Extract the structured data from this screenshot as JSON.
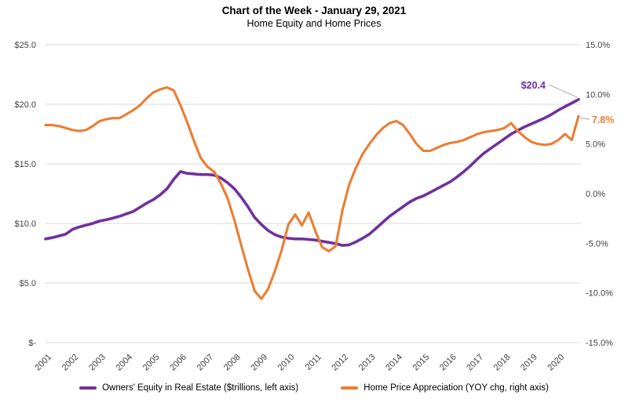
{
  "title": "Chart of the Week - January 29, 2021",
  "subtitle": "Home Equity and Home Prices",
  "chart_data": {
    "type": "line",
    "frequency": "quarterly",
    "x_years": [
      "2001",
      "2002",
      "2003",
      "2004",
      "2005",
      "2006",
      "2007",
      "2008",
      "2009",
      "2010",
      "2011",
      "2012",
      "2013",
      "2014",
      "2015",
      "2016",
      "2017",
      "2018",
      "2019",
      "2020"
    ],
    "series": [
      {
        "name": "Owners' Equity in Real Estate ($trillions, left axis)",
        "axis": "left",
        "color": "#7030A0",
        "end_label": "$20.4",
        "values": [
          8.7,
          8.8,
          8.95,
          9.1,
          9.5,
          9.7,
          9.85,
          10.0,
          10.2,
          10.3,
          10.45,
          10.6,
          10.8,
          11.0,
          11.35,
          11.7,
          12.0,
          12.4,
          12.9,
          13.7,
          14.35,
          14.2,
          14.15,
          14.1,
          14.1,
          14.05,
          13.8,
          13.4,
          12.9,
          12.2,
          11.4,
          10.5,
          9.9,
          9.4,
          9.05,
          8.85,
          8.75,
          8.7,
          8.7,
          8.65,
          8.6,
          8.5,
          8.4,
          8.3,
          8.15,
          8.2,
          8.45,
          8.75,
          9.1,
          9.6,
          10.1,
          10.6,
          11.0,
          11.4,
          11.8,
          12.1,
          12.3,
          12.6,
          12.9,
          13.2,
          13.5,
          13.9,
          14.35,
          14.85,
          15.4,
          15.9,
          16.3,
          16.7,
          17.1,
          17.5,
          17.8,
          18.1,
          18.35,
          18.6,
          18.85,
          19.15,
          19.5,
          19.8,
          20.1,
          20.4
        ]
      },
      {
        "name": "Home Price Appreciation (YOY chg, right axis)",
        "axis": "right",
        "color": "#ED7D31",
        "end_label": "7.8%",
        "values": [
          6.9,
          6.9,
          6.8,
          6.6,
          6.4,
          6.3,
          6.4,
          6.8,
          7.3,
          7.5,
          7.6,
          7.6,
          8.0,
          8.4,
          8.9,
          9.6,
          10.2,
          10.5,
          10.7,
          10.4,
          8.9,
          7.2,
          5.3,
          3.6,
          2.7,
          2.2,
          1.0,
          -0.5,
          -2.7,
          -5.2,
          -7.6,
          -9.8,
          -10.6,
          -9.6,
          -7.8,
          -5.7,
          -3.1,
          -2.1,
          -3.2,
          -1.9,
          -3.8,
          -5.4,
          -5.8,
          -5.3,
          -1.7,
          0.9,
          2.6,
          4.0,
          5.0,
          5.9,
          6.6,
          7.1,
          7.3,
          6.9,
          6.0,
          5.0,
          4.3,
          4.3,
          4.6,
          4.9,
          5.1,
          5.2,
          5.4,
          5.7,
          6.0,
          6.2,
          6.3,
          6.4,
          6.6,
          7.1,
          6.3,
          5.7,
          5.2,
          5.0,
          4.9,
          5.0,
          5.4,
          6.0,
          5.4,
          7.8
        ]
      }
    ],
    "left_axis": {
      "min": 0,
      "max": 25,
      "tick_labels": [
        "$25.0",
        "$20.0",
        "$15.0",
        "$10.0",
        "$5.0",
        "$-"
      ]
    },
    "right_axis": {
      "min": -15,
      "max": 15,
      "tick_labels": [
        "15.0%",
        "10.0%",
        "5.0%",
        "0.0%",
        "-5.0%",
        "-10.0%",
        "-15.0%"
      ]
    },
    "grid": "horizontal",
    "legend_position": "bottom"
  },
  "colors": {
    "gridline": "#D9D9D9",
    "axis_text": "#404040",
    "leader_line": "#A6A6A6",
    "background": "#FFFFFF"
  }
}
